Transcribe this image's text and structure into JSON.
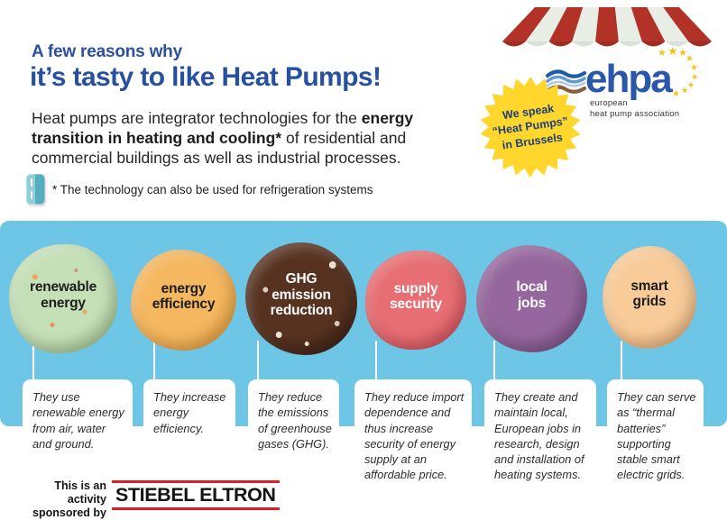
{
  "header": {
    "kicker": "A few reasons why",
    "title": "it’s tasty to like Heat Pumps!",
    "intro_pre": "Heat pumps are integrator technologies for the ",
    "intro_bold": "energy transition in heating and cooling*",
    "intro_post": " of residential and commercial buildings as well as industrial processes.",
    "footnote": "* The technology can also be used for refrigeration systems"
  },
  "brand": {
    "logo_text": "ehpa",
    "logo_subtitle_line1": "european",
    "logo_subtitle_line2": "heat pump association",
    "badge_line1": "We speak",
    "badge_line2": "“Heat Pumps”",
    "badge_line3": "in Brussels"
  },
  "scoops": [
    {
      "label": "renewable\nenergy",
      "description": "They use renewable energy from air, water and ground.",
      "colors": {
        "base": "#C5DFB7",
        "deep": "#A0C791",
        "text": "#1D1D1B"
      }
    },
    {
      "label": "energy\nefficiency",
      "description": "They increase energy efficiency.",
      "colors": {
        "base": "#F5B75F",
        "deep": "#EC9F38",
        "text": "#1D1D1B"
      }
    },
    {
      "label": "GHG\nemission\nreduction",
      "description": "They reduce the emissions of greenhouse gases (GHG).",
      "colors": {
        "base": "#573220",
        "deep": "#3A1F14",
        "text": "#FFFFFF"
      }
    },
    {
      "label": "supply\nsecurity",
      "description": "They reduce import dependence and thus increase security of energy supply at an affordable price.",
      "colors": {
        "base": "#E76E72",
        "deep": "#D84B58",
        "text": "#FFFFFF"
      }
    },
    {
      "label": "local\njobs",
      "description": "They create and maintain local, European jobs in research, design and installation of heating systems.",
      "colors": {
        "base": "#96679E",
        "deep": "#794E84",
        "text": "#FFFFFF"
      }
    },
    {
      "label": "smart\ngrids",
      "description": "They can serve as “thermal batteries” supporting stable smart electric grids.",
      "colors": {
        "base": "#F8CB99",
        "deep": "#EFB176",
        "text": "#1D1D1B"
      }
    }
  ],
  "sponsor": {
    "note": "This is an activity\nsponsored by",
    "logo_text": "STIEBEL ELTRON"
  },
  "colors": {
    "band": "#6EC6E6",
    "title_blue": "#27519F",
    "badge_yellow": "#FFD62B",
    "badge_text": "#1E3E79",
    "awning_red": "#B23228",
    "awning_cream": "#E8EEE6",
    "logo_blue": "#2B57A8",
    "star_gold": "#F2C41C",
    "stiebel_red": "#DC1E26"
  }
}
